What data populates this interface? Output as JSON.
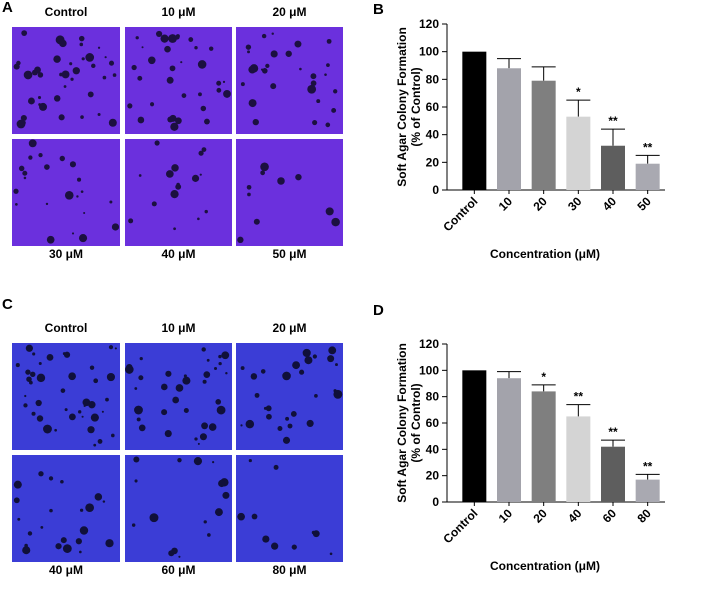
{
  "image_panels": [
    {
      "letter": "A",
      "labels": [
        "Control",
        "10 μM",
        "20 μM",
        "30 μM",
        "40 μM",
        "50 μM"
      ]
    },
    {
      "letter": "C",
      "labels": [
        "Control",
        "10 μM",
        "20 μM",
        "40 μM",
        "60 μM",
        "80 μM"
      ]
    }
  ],
  "chart_data": [
    {
      "type": "bar",
      "panel": "B",
      "y_label": [
        "Soft Agar Colony Formation",
        "(% of Control)"
      ],
      "x_label": "Concentration (μM)",
      "categories": [
        "Control",
        "10",
        "20",
        "30",
        "40",
        "50"
      ],
      "values": [
        100,
        88,
        79,
        53,
        32,
        19
      ],
      "errors": [
        0,
        7,
        10,
        12,
        12,
        6
      ],
      "significance": [
        null,
        null,
        null,
        "*",
        "**",
        "**"
      ],
      "colors": [
        "#000000",
        "#a3a3ab",
        "#7f7f7f",
        "#d4d4d4",
        "#5e5e5e",
        "#a9a9b1"
      ],
      "ylim": [
        0,
        120
      ],
      "yticks": [
        0,
        20,
        40,
        60,
        80,
        100,
        120
      ]
    },
    {
      "type": "bar",
      "panel": "D",
      "y_label": [
        "Soft Agar Colony Formation",
        "(% of Control)"
      ],
      "x_label": "Concentration (μM)",
      "categories": [
        "Control",
        "10",
        "20",
        "40",
        "60",
        "80"
      ],
      "values": [
        100,
        94,
        84,
        65,
        42,
        17
      ],
      "errors": [
        0,
        5,
        5,
        9,
        5,
        4
      ],
      "significance": [
        null,
        null,
        "*",
        "**",
        "**",
        "**"
      ],
      "colors": [
        "#000000",
        "#a3a3ab",
        "#7f7f7f",
        "#d4d4d4",
        "#5e5e5e",
        "#a9a9b1"
      ],
      "ylim": [
        0,
        120
      ],
      "yticks": [
        0,
        20,
        40,
        60,
        80,
        100,
        120
      ]
    }
  ]
}
